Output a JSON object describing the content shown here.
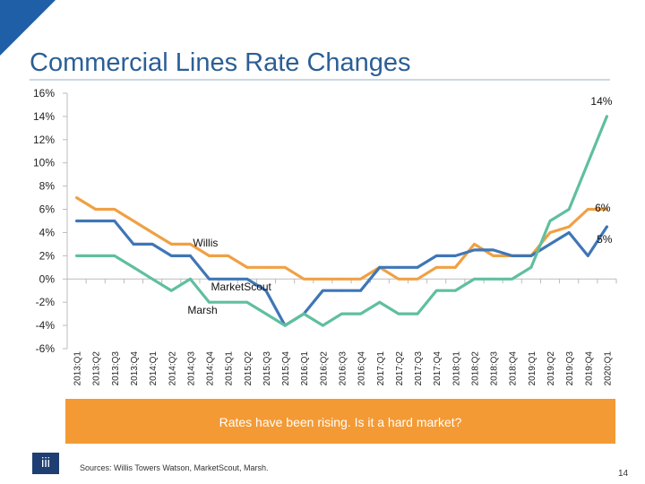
{
  "slide": {
    "title": "Commercial Lines Rate Changes",
    "banner": "Rates have been rising. Is it a hard market?",
    "sources": "Sources: Willis Towers Watson, MarketScout, Marsh.",
    "page_number": "14",
    "logo_glyph": "iii"
  },
  "chart_data": {
    "type": "line",
    "title": "",
    "xlabel": "",
    "ylabel": "",
    "ylim": [
      -6,
      16
    ],
    "yticks": [
      -6,
      -4,
      -2,
      0,
      2,
      4,
      6,
      8,
      10,
      12,
      14,
      16
    ],
    "ytick_labels": [
      "-6%",
      "-4%",
      "-2%",
      "0%",
      "2%",
      "4%",
      "6%",
      "8%",
      "10%",
      "12%",
      "14%",
      "16%"
    ],
    "categories": [
      "2013:Q1",
      "2013:Q2",
      "2013:Q3",
      "2013:Q4",
      "2014:Q1",
      "2014:Q2",
      "2014:Q3",
      "2014:Q4",
      "2015:Q1",
      "2015:Q2",
      "2015:Q3",
      "2015:Q4",
      "2016:Q1",
      "2016:Q2",
      "2016:Q3",
      "2016:Q4",
      "2017:Q1",
      "2017:Q2",
      "2017:Q3",
      "2017:Q4",
      "2018:Q1",
      "2018:Q2",
      "2018:Q3",
      "2018:Q4",
      "2019:Q1",
      "2019:Q2",
      "2019:Q3",
      "2019:Q4",
      "2020:Q1"
    ],
    "series": [
      {
        "name": "Willis",
        "color": "#f0a043",
        "values": [
          7,
          6,
          6,
          5,
          4,
          3,
          3,
          2,
          2,
          1,
          1,
          1,
          0,
          0,
          0,
          0,
          1,
          0,
          0,
          1,
          1,
          3,
          2,
          2,
          2,
          4,
          4.5,
          6,
          6
        ]
      },
      {
        "name": "MarketScout",
        "color": "#3f76b6",
        "values": [
          5,
          5,
          5,
          3,
          3,
          2,
          2,
          0,
          0,
          0,
          -1,
          -4,
          -3,
          -1,
          -1,
          -1,
          1,
          1,
          1,
          2,
          2,
          2.5,
          2.5,
          2,
          2,
          3,
          4,
          2,
          4.5
        ]
      },
      {
        "name": "Marsh",
        "color": "#5fbf9f",
        "values": [
          2,
          2,
          2,
          1,
          0,
          -1,
          0,
          -2,
          -2,
          -2,
          -3,
          -4,
          -3,
          -4,
          -3,
          -3,
          -2,
          -3,
          -3,
          -1,
          -1,
          0,
          0,
          0,
          1,
          5,
          6,
          10,
          14
        ]
      }
    ],
    "annotations": [
      {
        "text": "Willis",
        "series": "Willis"
      },
      {
        "text": "MarketScout",
        "series": "MarketScout"
      },
      {
        "text": "Marsh",
        "series": "Marsh"
      },
      {
        "text": "14%",
        "series": "Marsh"
      },
      {
        "text": "6%",
        "series": "Willis"
      },
      {
        "text": "5%",
        "series": "MarketScout"
      }
    ],
    "grid": false,
    "legend": "none"
  }
}
